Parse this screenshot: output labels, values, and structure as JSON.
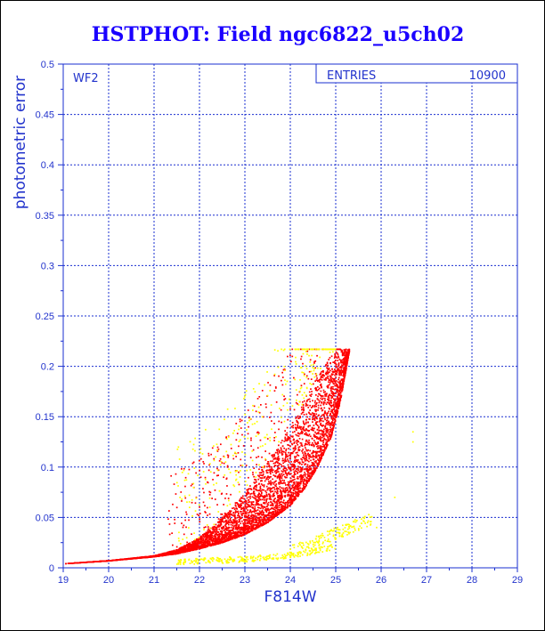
{
  "chart_data": {
    "type": "scatter",
    "title": "HSTPHOT: Field ngc6822_u5ch02",
    "xlabel": "F814W",
    "ylabel": "photometric error",
    "panel_label": "WF2",
    "stats_box": {
      "label": "ENTRIES",
      "value": "10900"
    },
    "xlim": [
      19,
      29
    ],
    "ylim": [
      0,
      0.5
    ],
    "x_ticks": [
      "19",
      "20",
      "21",
      "22",
      "23",
      "24",
      "25",
      "26",
      "27",
      "28",
      "29"
    ],
    "y_ticks": [
      "0",
      "0.05",
      "0.1",
      "0.15",
      "0.2",
      "0.25",
      "0.3",
      "0.35",
      "0.4",
      "0.45",
      "0.5"
    ],
    "grid": true,
    "series": [
      {
        "color": "#ff0000",
        "envelope": {
          "mag": [
            19.0,
            20.0,
            21.0,
            21.5,
            22.0,
            22.5,
            23.0,
            23.5,
            24.0,
            24.3,
            24.6,
            24.9,
            25.1,
            25.3
          ],
          "err_low": [
            0.004,
            0.007,
            0.011,
            0.014,
            0.019,
            0.025,
            0.033,
            0.045,
            0.062,
            0.078,
            0.1,
            0.13,
            0.165,
            0.215
          ],
          "err_high": [
            0.004,
            0.007,
            0.012,
            0.018,
            0.03,
            0.05,
            0.075,
            0.105,
            0.14,
            0.165,
            0.19,
            0.21,
            0.217,
            0.217
          ]
        }
      },
      {
        "color": "#ffff00",
        "groups": [
          {
            "mag_range": [
              21.5,
              25.0
            ],
            "err_range": [
              0.002,
              0.02
            ]
          },
          {
            "mag_range": [
              24.0,
              25.8
            ],
            "err_range": [
              0.01,
              0.045
            ]
          },
          {
            "mag_range": [
              21.5,
              24.5
            ],
            "err_range": [
              0.03,
              0.2
            ]
          },
          {
            "mag_range": [
              24.2,
              25.0
            ],
            "err_range": [
              0.1,
              0.2
            ]
          }
        ],
        "outliers": [
          [
            26.3,
            0.07
          ],
          [
            26.7,
            0.125
          ],
          [
            26.7,
            0.135
          ],
          [
            25.9,
            0.04
          ],
          [
            25.7,
            0.045
          ]
        ]
      }
    ]
  }
}
